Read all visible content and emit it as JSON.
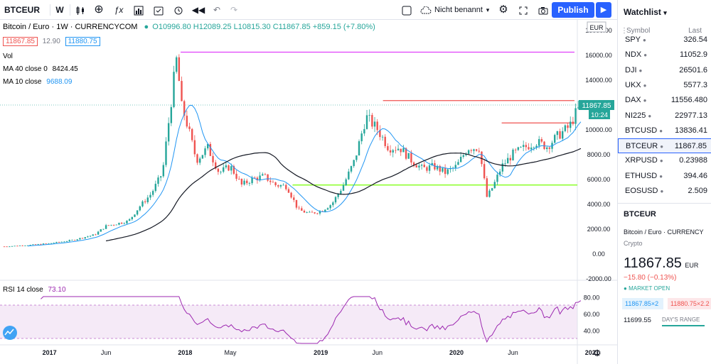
{
  "toolbar": {
    "symbol": "BTCEUR",
    "interval": "W",
    "layout_name": "Nicht benannt",
    "publish_label": "Publish"
  },
  "legend": {
    "title": "Bitcoin / Euro · 1W · CURRENCYCOM",
    "ohlc": "O10996.80 H12089.25 L10815.30 C11867.85 +859.15 (+7.80%)",
    "bid": "11867.85",
    "spread": "12.90",
    "ask": "11880.75",
    "vol_label": "Vol",
    "ma40_label": "MA 40 close 0",
    "ma40_value": "8424.45",
    "ma10_label": "MA 10 close",
    "ma10_value": "9688.09",
    "rsi_label": "RSI 14 close",
    "rsi_value": "73.10"
  },
  "price_axis": {
    "currency": "EUR",
    "ticks": [
      "18000.00",
      "16000.00",
      "14000.00",
      "12000.00",
      "10000.00",
      "8000.00",
      "6000.00",
      "4000.00",
      "2000.00",
      "0.00",
      "-2000.00"
    ],
    "last_price_label": "11867.85",
    "countdown_label": "10:24",
    "rsi_ticks": [
      "80.00",
      "60.00",
      "40.00"
    ]
  },
  "time_axis": {
    "ticks": [
      "2017",
      "Jun",
      "2018",
      "May",
      "2019",
      "Jun",
      "2020",
      "Jun",
      "2021"
    ]
  },
  "watchlist": {
    "title": "Watchlist",
    "col_symbol": "Symbol",
    "col_last": "Last",
    "items": [
      {
        "symbol": "SPY",
        "last": "326.54"
      },
      {
        "symbol": "NDX",
        "last": "11052.9"
      },
      {
        "symbol": "DJI",
        "last": "26501.6"
      },
      {
        "symbol": "UKX",
        "last": "5577.3"
      },
      {
        "symbol": "DAX",
        "last": "11556.480"
      },
      {
        "symbol": "NI225",
        "last": "22977.13"
      },
      {
        "symbol": "BTCUSD",
        "last": "13836.41"
      },
      {
        "symbol": "BTCEUR",
        "last": "11867.85"
      },
      {
        "symbol": "XRPUSD",
        "last": "0.23988"
      },
      {
        "symbol": "ETHUSD",
        "last": "394.46"
      },
      {
        "symbol": "EOSUSD",
        "last": "2.509"
      }
    ]
  },
  "details": {
    "symbol": "BTCEUR",
    "name": "Bitcoin / Euro · CURRENCY",
    "type": "Crypto",
    "price": "11867.85",
    "price_unit": "EUR",
    "change": "−15.80 (−0.13%)",
    "market_status": "MARKET OPEN",
    "bid": "11867.85×2",
    "ask": "11880.75×2.2",
    "days_low": "11699.55",
    "days_range_label": "DAY'S RANGE"
  },
  "colors": {
    "up": "#26a69a",
    "down": "#ef5350",
    "ma10": "#2196f3",
    "ma40": "#131722",
    "rsi": "#9c27b0",
    "accent": "#2962ff"
  },
  "chart_data": {
    "type": "line",
    "series": [
      {
        "name": "BTCEUR",
        "x": [
          "2016-09",
          "2017-01",
          "2017-06",
          "2017-10",
          "2017-12",
          "2018-02",
          "2018-06",
          "2018-11",
          "2019-02",
          "2019-06",
          "2019-10",
          "2020-01",
          "2020-03",
          "2020-06",
          "2020-09",
          "2020-10"
        ],
        "values": [
          550,
          800,
          2200,
          4800,
          16000,
          7500,
          5500,
          3500,
          3300,
          11000,
          7500,
          8000,
          4200,
          8500,
          9000,
          11867.85
        ]
      }
    ],
    "ylim": [
      -2000,
      18000
    ],
    "horizontal_levels": [
      16200,
      12300,
      10500,
      5500
    ]
  }
}
